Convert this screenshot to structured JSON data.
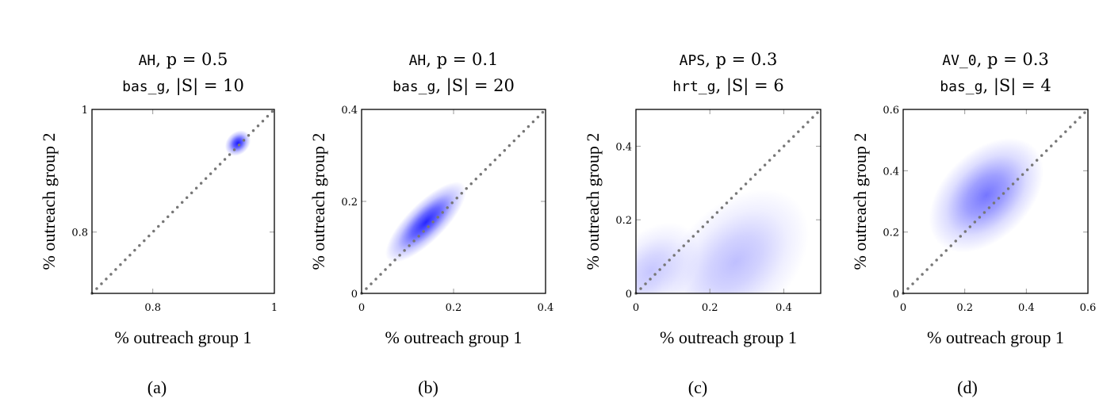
{
  "chart_data": [
    {
      "type": "heatmap",
      "caption": "(a)",
      "title_line1": {
        "code": "AH",
        "rest": ", p = 0.5"
      },
      "title_line2": {
        "code": "bas_g",
        "rest": ", |S| = 10"
      },
      "xlabel": "% outreach group 1",
      "ylabel": "% outreach group 2",
      "xlim": [
        0.7,
        1
      ],
      "ylim": [
        0.7,
        1
      ],
      "xticks": [
        0.8,
        1
      ],
      "yticks": [
        0.8,
        1
      ],
      "xtick_labels": [
        "0.8",
        "1"
      ],
      "ytick_labels": [
        "0.8",
        "1"
      ],
      "diagonal": "y = x (dotted)",
      "density_clusters": [
        {
          "center": [
            0.94,
            0.945
          ],
          "sd_major": 0.009,
          "sd_minor": 0.007,
          "intensity": 1.0
        }
      ]
    },
    {
      "type": "heatmap",
      "caption": "(b)",
      "title_line1": {
        "code": "AH",
        "rest": ", p = 0.1"
      },
      "title_line2": {
        "code": "bas_g",
        "rest": ", |S| = 20"
      },
      "xlabel": "% outreach group 1",
      "ylabel": "% outreach group 2",
      "xlim": [
        0,
        0.4
      ],
      "ylim": [
        0,
        0.4
      ],
      "xticks": [
        0,
        0.2,
        0.4
      ],
      "yticks": [
        0,
        0.2,
        0.4
      ],
      "xtick_labels": [
        "0",
        "0.2",
        "0.4"
      ],
      "ytick_labels": [
        "0",
        "0.2",
        "0.4"
      ],
      "diagonal": "y = x (dotted)",
      "density_clusters": [
        {
          "center": [
            0.14,
            0.155
          ],
          "sd_major": 0.045,
          "sd_minor": 0.016,
          "intensity": 0.95
        }
      ]
    },
    {
      "type": "heatmap",
      "caption": "(c)",
      "title_line1": {
        "code": "APS",
        "rest": ", p = 0.3"
      },
      "title_line2": {
        "code": "hrt_g",
        "rest": ", |S| = 6"
      },
      "xlabel": "% outreach group 1",
      "ylabel": "% outreach group 2",
      "xlim": [
        0,
        0.5
      ],
      "ylim": [
        0,
        0.5
      ],
      "xticks": [
        0,
        0.2,
        0.4
      ],
      "yticks": [
        0,
        0.2,
        0.4
      ],
      "xtick_labels": [
        "0",
        "0.2",
        "0.4"
      ],
      "ytick_labels": [
        "0",
        "0.2",
        "0.4"
      ],
      "diagonal": "y = x (dotted)",
      "density_clusters": [
        {
          "center": [
            0.27,
            0.085
          ],
          "sd_major": 0.09,
          "sd_minor": 0.06,
          "intensity": 0.28
        },
        {
          "center": [
            0.04,
            0.06
          ],
          "sd_major": 0.06,
          "sd_minor": 0.04,
          "intensity": 0.25
        }
      ]
    },
    {
      "type": "heatmap",
      "caption": "(d)",
      "title_line1": {
        "code": "AV_0",
        "rest": ", p = 0.3"
      },
      "title_line2": {
        "code": "bas_g",
        "rest": ", |S| = 4"
      },
      "xlabel": "% outreach group 1",
      "ylabel": "% outreach group 2",
      "xlim": [
        0,
        0.6
      ],
      "ylim": [
        0,
        0.6
      ],
      "xticks": [
        0,
        0.2,
        0.4,
        0.6
      ],
      "yticks": [
        0,
        0.2,
        0.4,
        0.6
      ],
      "xtick_labels": [
        "0",
        "0.2",
        "0.4",
        "0.6"
      ],
      "ytick_labels": [
        "0",
        "0.2",
        "0.4",
        "0.6"
      ],
      "diagonal": "y = x (dotted)",
      "density_clusters": [
        {
          "center": [
            0.27,
            0.32
          ],
          "sd_major": 0.085,
          "sd_minor": 0.055,
          "intensity": 0.6
        }
      ]
    }
  ],
  "colors": {
    "density": "#1a1aff",
    "diagonal": "#777777",
    "axes": "#000000",
    "ticks": "#999999"
  }
}
